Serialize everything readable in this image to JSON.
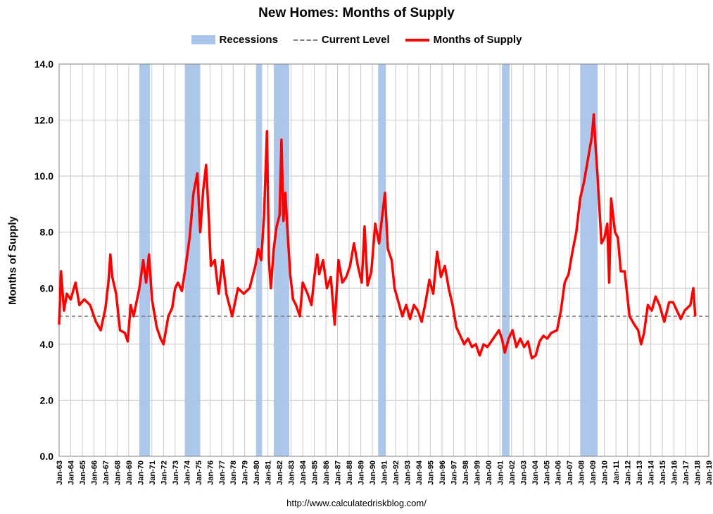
{
  "chart_data": {
    "type": "line",
    "title": "New Homes: Months of Supply",
    "ylabel": "Months of Supply",
    "xlabel": "",
    "ylim": [
      0,
      14
    ],
    "yticks": [
      "0.0",
      "2.0",
      "4.0",
      "6.0",
      "8.0",
      "10.0",
      "12.0",
      "14.0"
    ],
    "x_tick_labels": [
      "Jan-63",
      "Jan-64",
      "Jan-65",
      "Jan-66",
      "Jan-67",
      "Jan-68",
      "Jan-69",
      "Jan-70",
      "Jan-71",
      "Jan-72",
      "Jan-73",
      "Jan-74",
      "Jan-75",
      "Jan-76",
      "Jan-77",
      "Jan-78",
      "Jan-79",
      "Jan-80",
      "Jan-81",
      "Jan-82",
      "Jan-83",
      "Jan-84",
      "Jan-85",
      "Jan-86",
      "Jan-87",
      "Jan-88",
      "Jan-89",
      "Jan-90",
      "Jan-91",
      "Jan-92",
      "Jan-93",
      "Jan-94",
      "Jan-95",
      "Jan-96",
      "Jan-97",
      "Jan-98",
      "Jan-99",
      "Jan-00",
      "Jan-01",
      "Jan-02",
      "Jan-03",
      "Jan-04",
      "Jan-05",
      "Jan-06",
      "Jan-07",
      "Jan-08",
      "Jan-09",
      "Jan-10",
      "Jan-11",
      "Jan-12",
      "Jan-13",
      "Jan-14",
      "Jan-15",
      "Jan-16",
      "Jan-17",
      "Jan-18",
      "Jan-19"
    ],
    "grid": true,
    "legend_position": "top-center",
    "legend": [
      {
        "label": "Recessions",
        "style": "band",
        "color": "#a9c4ea"
      },
      {
        "label": "Current Level",
        "style": "dashed",
        "color": "#808080"
      },
      {
        "label": "Months of Supply",
        "style": "line",
        "color": "#ff0000"
      }
    ],
    "recessions": [
      [
        "1969-12",
        "1970-11"
      ],
      [
        "1973-11",
        "1975-03"
      ],
      [
        "1980-01",
        "1980-07"
      ],
      [
        "1981-07",
        "1982-11"
      ],
      [
        "1990-07",
        "1991-03"
      ],
      [
        "2001-03",
        "2001-11"
      ],
      [
        "2007-12",
        "2009-06"
      ]
    ],
    "current_level": 5.0,
    "series": [
      {
        "name": "Months of Supply",
        "color": "#ff0000",
        "points": [
          [
            "1963-01",
            4.7
          ],
          [
            "1963-03",
            6.6
          ],
          [
            "1963-06",
            5.2
          ],
          [
            "1963-09",
            5.8
          ],
          [
            "1964-01",
            5.6
          ],
          [
            "1964-06",
            6.2
          ],
          [
            "1964-10",
            5.4
          ],
          [
            "1965-03",
            5.6
          ],
          [
            "1965-09",
            5.4
          ],
          [
            "1966-03",
            4.8
          ],
          [
            "1966-08",
            4.5
          ],
          [
            "1967-01",
            5.3
          ],
          [
            "1967-04",
            6.2
          ],
          [
            "1967-06",
            7.2
          ],
          [
            "1967-08",
            6.4
          ],
          [
            "1967-12",
            5.8
          ],
          [
            "1968-04",
            4.5
          ],
          [
            "1968-09",
            4.4
          ],
          [
            "1968-12",
            4.1
          ],
          [
            "1969-03",
            5.4
          ],
          [
            "1969-06",
            5.0
          ],
          [
            "1969-09",
            5.5
          ],
          [
            "1969-12",
            6.0
          ],
          [
            "1970-04",
            7.0
          ],
          [
            "1970-07",
            6.2
          ],
          [
            "1970-10",
            7.2
          ],
          [
            "1971-01",
            5.6
          ],
          [
            "1971-06",
            4.6
          ],
          [
            "1971-10",
            4.2
          ],
          [
            "1972-01",
            4.0
          ],
          [
            "1972-06",
            5.0
          ],
          [
            "1972-10",
            5.3
          ],
          [
            "1973-01",
            6.0
          ],
          [
            "1973-04",
            6.2
          ],
          [
            "1973-08",
            5.9
          ],
          [
            "1973-12",
            6.8
          ],
          [
            "1974-04",
            7.8
          ],
          [
            "1974-08",
            9.4
          ],
          [
            "1974-12",
            10.1
          ],
          [
            "1975-03",
            8.0
          ],
          [
            "1975-06",
            9.5
          ],
          [
            "1975-09",
            10.4
          ],
          [
            "1975-12",
            8.4
          ],
          [
            "1976-02",
            6.8
          ],
          [
            "1976-06",
            7.0
          ],
          [
            "1976-10",
            5.8
          ],
          [
            "1977-02",
            7.0
          ],
          [
            "1977-06",
            5.8
          ],
          [
            "1977-12",
            5.0
          ],
          [
            "1978-06",
            6.0
          ],
          [
            "1978-12",
            5.8
          ],
          [
            "1979-06",
            6.0
          ],
          [
            "1979-12",
            6.8
          ],
          [
            "1980-03",
            7.4
          ],
          [
            "1980-06",
            7.0
          ],
          [
            "1980-09",
            8.6
          ],
          [
            "1980-12",
            11.6
          ],
          [
            "1981-02",
            7.0
          ],
          [
            "1981-04",
            6.0
          ],
          [
            "1981-07",
            7.4
          ],
          [
            "1981-10",
            8.2
          ],
          [
            "1982-01",
            8.6
          ],
          [
            "1982-03",
            11.3
          ],
          [
            "1982-05",
            8.4
          ],
          [
            "1982-07",
            9.4
          ],
          [
            "1982-09",
            8.2
          ],
          [
            "1982-12",
            6.5
          ],
          [
            "1983-03",
            5.6
          ],
          [
            "1983-06",
            5.4
          ],
          [
            "1983-10",
            5.0
          ],
          [
            "1984-01",
            6.2
          ],
          [
            "1984-06",
            5.8
          ],
          [
            "1984-10",
            5.4
          ],
          [
            "1985-01",
            6.4
          ],
          [
            "1985-04",
            7.2
          ],
          [
            "1985-06",
            6.5
          ],
          [
            "1985-10",
            7.0
          ],
          [
            "1986-02",
            6.0
          ],
          [
            "1986-06",
            6.4
          ],
          [
            "1986-10",
            4.7
          ],
          [
            "1987-02",
            7.0
          ],
          [
            "1987-06",
            6.2
          ],
          [
            "1987-10",
            6.4
          ],
          [
            "1988-02",
            6.8
          ],
          [
            "1988-06",
            7.6
          ],
          [
            "1988-10",
            6.8
          ],
          [
            "1989-02",
            6.2
          ],
          [
            "1989-05",
            8.2
          ],
          [
            "1989-08",
            6.1
          ],
          [
            "1989-12",
            6.6
          ],
          [
            "1990-04",
            8.3
          ],
          [
            "1990-08",
            7.6
          ],
          [
            "1990-12",
            8.8
          ],
          [
            "1991-02",
            9.4
          ],
          [
            "1991-05",
            7.4
          ],
          [
            "1991-09",
            7.0
          ],
          [
            "1991-12",
            6.0
          ],
          [
            "1992-04",
            5.5
          ],
          [
            "1992-08",
            5.0
          ],
          [
            "1992-12",
            5.4
          ],
          [
            "1993-04",
            4.9
          ],
          [
            "1993-08",
            5.4
          ],
          [
            "1993-12",
            5.2
          ],
          [
            "1994-04",
            4.8
          ],
          [
            "1994-08",
            5.5
          ],
          [
            "1994-12",
            6.3
          ],
          [
            "1995-04",
            5.8
          ],
          [
            "1995-08",
            7.3
          ],
          [
            "1995-12",
            6.4
          ],
          [
            "1996-04",
            6.8
          ],
          [
            "1996-08",
            6.0
          ],
          [
            "1996-12",
            5.4
          ],
          [
            "1997-04",
            4.6
          ],
          [
            "1997-08",
            4.3
          ],
          [
            "1997-12",
            4.0
          ],
          [
            "1998-04",
            4.2
          ],
          [
            "1998-08",
            3.9
          ],
          [
            "1998-12",
            4.0
          ],
          [
            "1999-04",
            3.6
          ],
          [
            "1999-08",
            4.0
          ],
          [
            "1999-12",
            3.9
          ],
          [
            "2000-04",
            4.1
          ],
          [
            "2000-08",
            4.3
          ],
          [
            "2000-12",
            4.5
          ],
          [
            "2001-03",
            4.2
          ],
          [
            "2001-06",
            3.7
          ],
          [
            "2001-10",
            4.2
          ],
          [
            "2002-02",
            4.5
          ],
          [
            "2002-06",
            3.9
          ],
          [
            "2002-10",
            4.2
          ],
          [
            "2003-02",
            3.9
          ],
          [
            "2003-06",
            4.1
          ],
          [
            "2003-10",
            3.5
          ],
          [
            "2004-02",
            3.6
          ],
          [
            "2004-06",
            4.1
          ],
          [
            "2004-10",
            4.3
          ],
          [
            "2005-02",
            4.2
          ],
          [
            "2005-06",
            4.4
          ],
          [
            "2005-12",
            4.5
          ],
          [
            "2006-04",
            5.2
          ],
          [
            "2006-08",
            6.2
          ],
          [
            "2006-12",
            6.5
          ],
          [
            "2007-04",
            7.3
          ],
          [
            "2007-08",
            8.0
          ],
          [
            "2007-12",
            9.2
          ],
          [
            "2008-04",
            9.8
          ],
          [
            "2008-08",
            10.6
          ],
          [
            "2008-12",
            11.4
          ],
          [
            "2009-02",
            12.2
          ],
          [
            "2009-04",
            11.0
          ],
          [
            "2009-06",
            10.0
          ],
          [
            "2009-10",
            7.6
          ],
          [
            "2010-01",
            7.8
          ],
          [
            "2010-04",
            8.3
          ],
          [
            "2010-06",
            6.2
          ],
          [
            "2010-08",
            9.2
          ],
          [
            "2010-12",
            8.0
          ],
          [
            "2011-03",
            7.8
          ],
          [
            "2011-06",
            6.6
          ],
          [
            "2011-10",
            6.6
          ],
          [
            "2012-03",
            5.0
          ],
          [
            "2012-08",
            4.7
          ],
          [
            "2012-12",
            4.5
          ],
          [
            "2013-03",
            4.0
          ],
          [
            "2013-06",
            4.4
          ],
          [
            "2013-10",
            5.4
          ],
          [
            "2014-02",
            5.2
          ],
          [
            "2014-06",
            5.7
          ],
          [
            "2014-10",
            5.4
          ],
          [
            "2015-03",
            4.8
          ],
          [
            "2015-08",
            5.5
          ],
          [
            "2015-12",
            5.5
          ],
          [
            "2016-04",
            5.2
          ],
          [
            "2016-08",
            4.9
          ],
          [
            "2016-12",
            5.2
          ],
          [
            "2017-03",
            5.3
          ],
          [
            "2017-06",
            5.4
          ],
          [
            "2017-09",
            6.0
          ],
          [
            "2017-11",
            5.0
          ]
        ]
      }
    ]
  },
  "source_note": "http://www.calculatedriskblog.com/"
}
